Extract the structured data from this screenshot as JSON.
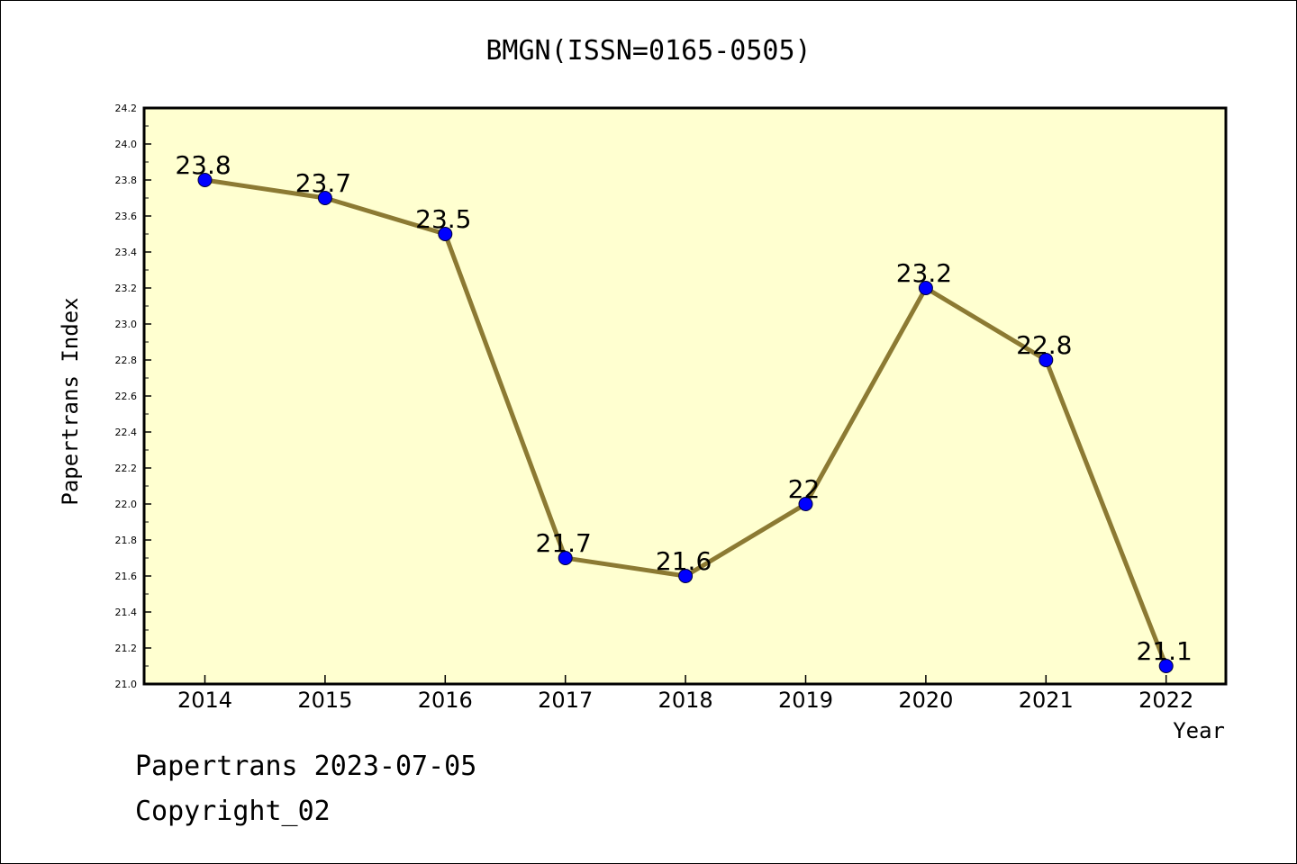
{
  "chart_data": {
    "type": "line",
    "title": "BMGN(ISSN=0165-0505)",
    "xlabel": "Year",
    "ylabel": "Papertrans Index",
    "categories": [
      "2014",
      "2015",
      "2016",
      "2017",
      "2018",
      "2019",
      "2020",
      "2021",
      "2022"
    ],
    "series": [
      {
        "values": [
          23.8,
          23.7,
          23.5,
          21.7,
          21.6,
          22.0,
          23.2,
          22.8,
          21.1
        ],
        "data_labels": [
          "23.8",
          "23.7",
          "23.5",
          "21.7",
          "21.6",
          "22",
          "23.2",
          "22.8",
          "21.1"
        ]
      }
    ],
    "ylim": [
      21.0,
      24.2
    ],
    "yticks": [
      "21.0",
      "21.2",
      "21.4",
      "21.6",
      "21.8",
      "22.0",
      "22.2",
      "22.4",
      "22.6",
      "22.8",
      "23.0",
      "23.2",
      "23.4",
      "23.6",
      "23.8",
      "24.0",
      "24.2"
    ],
    "grid": false,
    "colors": {
      "plot_background": "#ffffd0",
      "line": "#8c7a33",
      "marker": "#0000ff"
    }
  },
  "footer": {
    "line1": "Papertrans 2023-07-05",
    "line2": "Copyright_02"
  }
}
